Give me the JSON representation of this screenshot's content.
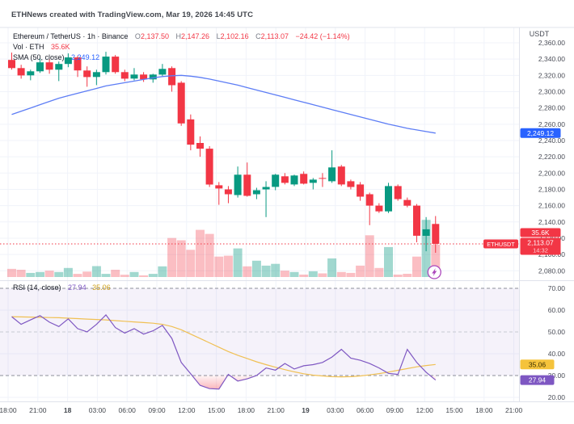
{
  "header": {
    "title": "ETHNews created with TradingView.com, Mar 19, 2026 14:45 UTC"
  },
  "legend": {
    "symbol": "Ethereum / TetherUS · 1h · Binance",
    "o_label": "O",
    "o": "2,137.50",
    "h_label": "H",
    "h": "2,147.26",
    "l_label": "L",
    "l": "2,102.16",
    "c_label": "C",
    "c": "2,113.07",
    "change": "−24.42 (−1.14%)",
    "vol_label": "Vol · ETH",
    "vol_value": "35.6K",
    "sma_label": "SMA (50, close)",
    "sma_value": "2,249.12"
  },
  "rsi_row": {
    "label": "RSI (14, close)",
    "value": "27.94",
    "ma_value": "35.06"
  },
  "axis": {
    "currency": "USDT",
    "price_ticks": [
      {
        "v": 2360,
        "label": "2,360.00"
      },
      {
        "v": 2340,
        "label": "2,340.00"
      },
      {
        "v": 2320,
        "label": "2,320.00"
      },
      {
        "v": 2300,
        "label": "2,300.00"
      },
      {
        "v": 2280,
        "label": "2,280.00"
      },
      {
        "v": 2260,
        "label": "2,260.00"
      },
      {
        "v": 2240,
        "label": "2,240.00"
      },
      {
        "v": 2220,
        "label": "2,220.00"
      },
      {
        "v": 2200,
        "label": "2,200.00"
      },
      {
        "v": 2180,
        "label": "2,180.00"
      },
      {
        "v": 2160,
        "label": "2,160.00"
      },
      {
        "v": 2140,
        "label": "2,140.00"
      },
      {
        "v": 2120,
        "label": "2,120.00"
      },
      {
        "v": 2100,
        "label": "2,100.00"
      },
      {
        "v": 2080,
        "label": "2,080.00"
      }
    ],
    "rsi_ticks": [
      {
        "v": 70,
        "label": "70.00"
      },
      {
        "v": 60,
        "label": "60.00"
      },
      {
        "v": 50,
        "label": "50.00"
      },
      {
        "v": 40,
        "label": "40.00"
      },
      {
        "v": 30,
        "label": "30.00"
      },
      {
        "v": 20,
        "label": "20.00"
      }
    ],
    "time_labels": [
      "18:00",
      "21:00",
      "18",
      "03:00",
      "06:00",
      "09:00",
      "12:00",
      "15:00",
      "18:00",
      "21:00",
      "19",
      "03:00",
      "06:00",
      "09:00",
      "12:00",
      "15:00",
      "18:00",
      "21:00"
    ],
    "bold_time_indexes": [
      2,
      10
    ],
    "sma_badge": "2,249.12",
    "volume_badge": "35.6K",
    "price_badge": "2,113.07",
    "countdown_badge": "14:32",
    "rsi_badge": "27.94",
    "rsi_ma_badge": "35.06",
    "symbol_tag": "ETHUSDT"
  },
  "colors": {
    "up": "#089981",
    "down": "#f23645",
    "vol_up": "rgba(8,153,129,0.38)",
    "vol_down": "rgba(242,54,69,0.32)",
    "sma": "#5d7df5",
    "rsi": "#7e57c2",
    "rsi_ma": "#f0c053",
    "rsi_band": "rgba(126,87,194,0.08)",
    "band_dash": "#8c8f9a",
    "mid_dash": "#c7c9d1",
    "grid": "#f0f3fa",
    "border": "#e0e3eb",
    "badge_blue": "#2962ff",
    "badge_red": "#f23645",
    "badge_yellow": "#f5c33b",
    "badge_purple": "#7e57c2",
    "axis_text": "#4a4d57",
    "marker": "#ab47bc"
  },
  "chart_data": {
    "type": "candlestick",
    "title": "Ethereum / TetherUS 1h Binance",
    "price_range": [
      2080,
      2360
    ],
    "rsi_range": [
      20,
      70
    ],
    "rsi_upper_band": 70,
    "rsi_lower_band": 30,
    "rsi_mid": 50,
    "last_price": 2113.07,
    "candles": [
      [
        2339,
        2348,
        2327,
        2329
      ],
      [
        2329,
        2333,
        2316,
        2320
      ],
      [
        2320,
        2327,
        2314,
        2325
      ],
      [
        2325,
        2341,
        2323,
        2336
      ],
      [
        2336,
        2340,
        2322,
        2327
      ],
      [
        2327,
        2337,
        2313,
        2334
      ],
      [
        2334,
        2347,
        2330,
        2342
      ],
      [
        2342,
        2344,
        2318,
        2326
      ],
      [
        2326,
        2331,
        2306,
        2318
      ],
      [
        2318,
        2327,
        2308,
        2324
      ],
      [
        2324,
        2349,
        2321,
        2343
      ],
      [
        2343,
        2345,
        2322,
        2324
      ],
      [
        2324,
        2327,
        2313,
        2316
      ],
      [
        2316,
        2329,
        2314,
        2321
      ],
      [
        2321,
        2324,
        2312,
        2315
      ],
      [
        2315,
        2322,
        2311,
        2321
      ],
      [
        2321,
        2334,
        2319,
        2328
      ],
      [
        2329,
        2331,
        2300,
        2308
      ],
      [
        2311,
        2313,
        2258,
        2261
      ],
      [
        2266,
        2272,
        2228,
        2235
      ],
      [
        2237,
        2245,
        2220,
        2230
      ],
      [
        2230,
        2233,
        2183,
        2186
      ],
      [
        2185,
        2189,
        2161,
        2181
      ],
      [
        2180,
        2184,
        2163,
        2174
      ],
      [
        2173,
        2208,
        2170,
        2198
      ],
      [
        2198,
        2213,
        2171,
        2172
      ],
      [
        2174,
        2182,
        2168,
        2179
      ],
      [
        2180,
        2190,
        2146,
        2183
      ],
      [
        2183,
        2199,
        2179,
        2198
      ],
      [
        2196,
        2200,
        2186,
        2188
      ],
      [
        2186,
        2198,
        2184,
        2197
      ],
      [
        2199,
        2202,
        2186,
        2187
      ],
      [
        2188,
        2194,
        2180,
        2192
      ],
      [
        2194,
        2200,
        2183,
        2193
      ],
      [
        2190,
        2228,
        2188,
        2207
      ],
      [
        2208,
        2210,
        2184,
        2186
      ],
      [
        2190,
        2192,
        2180,
        2183
      ],
      [
        2186,
        2189,
        2166,
        2171
      ],
      [
        2174,
        2176,
        2136,
        2160
      ],
      [
        2160,
        2163,
        2151,
        2153
      ],
      [
        2153,
        2188,
        2151,
        2184
      ],
      [
        2184,
        2186,
        2166,
        2168
      ],
      [
        2167,
        2170,
        2158,
        2160
      ],
      [
        2160,
        2162,
        2115,
        2123
      ],
      [
        2123,
        2146,
        2104,
        2131
      ],
      [
        2137.5,
        2147.26,
        2102.16,
        2113.07
      ]
    ],
    "volumes_k": [
      9,
      8,
      4.5,
      5.5,
      7,
      5.5,
      10,
      3.5,
      6,
      12,
      3.5,
      8,
      2.5,
      5.5,
      1.8,
      3.5,
      11.7,
      43,
      40.5,
      30,
      52,
      47.5,
      22.5,
      23.5,
      31.5,
      11.7,
      18,
      12.5,
      14.5,
      7,
      5.5,
      2.7,
      6.3,
      4,
      20.5,
      5.5,
      4.5,
      12.5,
      46,
      10,
      33,
      2.7,
      3.6,
      22.5,
      63,
      35.6
    ],
    "sma50": [
      2272,
      2276,
      2280,
      2284,
      2288,
      2292,
      2295,
      2298,
      2301,
      2304,
      2307,
      2309,
      2311,
      2313,
      2315,
      2317,
      2318.5,
      2319.5,
      2320,
      2319,
      2317.5,
      2315.5,
      2313,
      2310.5,
      2308,
      2305,
      2302,
      2299,
      2296,
      2293,
      2290,
      2287,
      2284,
      2281,
      2278,
      2275,
      2272,
      2269,
      2266,
      2263,
      2260,
      2257.5,
      2255,
      2253,
      2251,
      2249.12
    ],
    "rsi": [
      57,
      53.5,
      55.5,
      57.5,
      54.5,
      52.5,
      56,
      51.5,
      50,
      53.5,
      57.8,
      52,
      49.5,
      51.5,
      49,
      50.5,
      53,
      47,
      36,
      30.8,
      25.5,
      24,
      23.8,
      30.5,
      27.5,
      28.5,
      30,
      33.5,
      32.5,
      35.5,
      33,
      34.5,
      35,
      36,
      38.5,
      42,
      38,
      37,
      35.5,
      33.5,
      31,
      30.5,
      42,
      36,
      31.5,
      27.94
    ],
    "rsi_ma": [
      57,
      56.9,
      56.8,
      56.7,
      56.6,
      56.5,
      56.3,
      56.1,
      55.9,
      55.7,
      55.5,
      55.2,
      54.9,
      54.6,
      54.3,
      54,
      53.5,
      52.5,
      51,
      49,
      47,
      45,
      43,
      41,
      39.3,
      37.8,
      36.3,
      35,
      33.8,
      32.7,
      31.7,
      30.8,
      30.2,
      29.8,
      29.5,
      29.4,
      29.5,
      29.8,
      30.3,
      30.9,
      31.6,
      32.4,
      33.2,
      34,
      34.6,
      35.06
    ]
  }
}
